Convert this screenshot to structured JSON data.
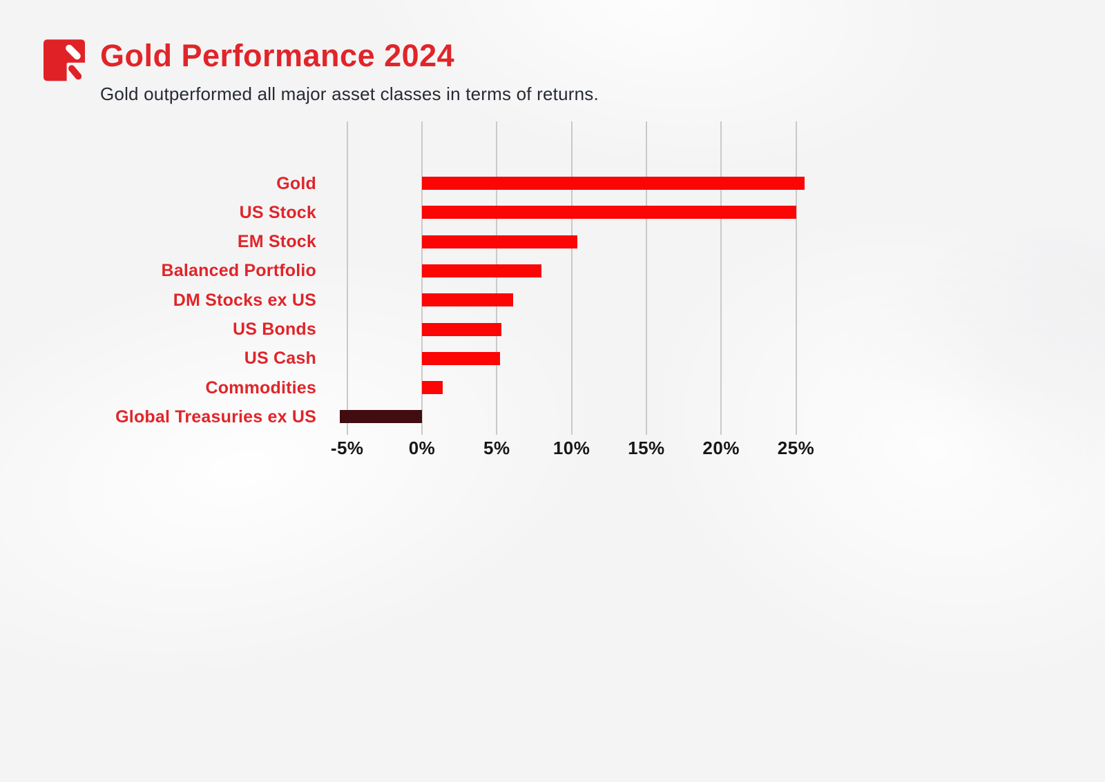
{
  "header": {
    "title": "Gold Performance 2024",
    "subtitle": "Gold outperformed all major asset classes in terms of returns.",
    "logo_icon": "pen-square-logo",
    "title_color": "#e02529",
    "subtitle_color": "#262b33"
  },
  "chart_data": {
    "type": "bar",
    "orientation": "horizontal",
    "title": "Gold Performance 2024",
    "subtitle": "Gold outperformed all major asset classes in terms of returns.",
    "categories": [
      "Gold",
      "US Stock",
      "EM Stock",
      "Balanced Portfolio",
      "DM Stocks ex US",
      "US Bonds",
      "US Cash",
      "Commodities",
      "Global Treasuries ex US"
    ],
    "values": [
      25.6,
      25.0,
      10.4,
      8.0,
      6.1,
      5.3,
      5.2,
      1.4,
      -5.5
    ],
    "unit": "%",
    "x_tick_labels": [
      "-5%",
      "0%",
      "5%",
      "10%",
      "15%",
      "20%",
      "25%"
    ],
    "x_tick_values": [
      -5,
      0,
      5,
      10,
      15,
      20,
      25
    ],
    "xlim": [
      -6.5,
      26.5
    ],
    "grid": true,
    "legend": false,
    "bar_color": "#fb0505",
    "negative_bar_color": "#420d10",
    "category_label_color": "#e02529",
    "tick_label_color": "#171717",
    "gridline_color": "#c9c9c9"
  }
}
